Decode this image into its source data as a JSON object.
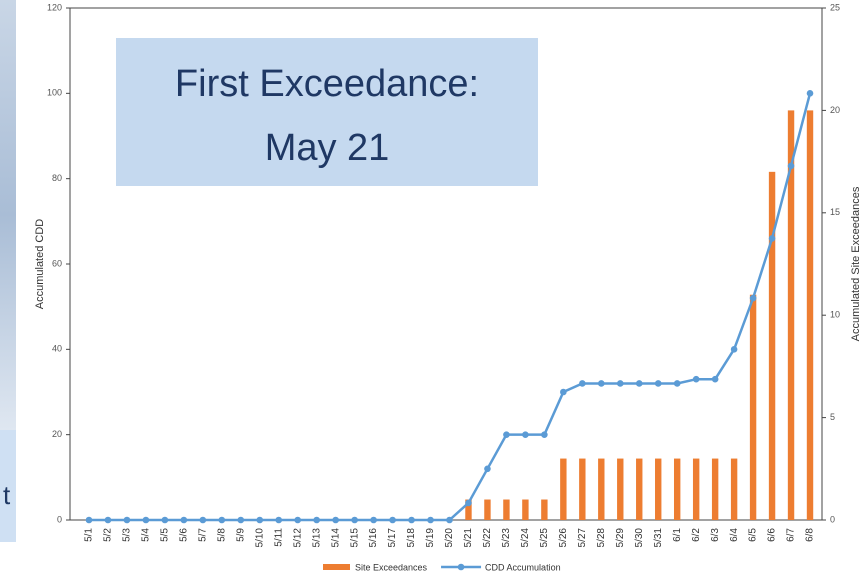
{
  "chart_data": {
    "type": "bar_line",
    "annotation": [
      "First Exceedance:",
      "May 21"
    ],
    "background_text": "t",
    "y_label": "Accumulated CDD",
    "y2_label": "Accumulated Site Exceedances",
    "categories": [
      "5/1",
      "5/2",
      "5/3",
      "5/4",
      "5/5",
      "5/6",
      "5/7",
      "5/8",
      "5/9",
      "5/10",
      "5/11",
      "5/12",
      "5/13",
      "5/14",
      "5/15",
      "5/16",
      "5/17",
      "5/18",
      "5/19",
      "5/20",
      "5/21",
      "5/22",
      "5/23",
      "5/24",
      "5/25",
      "5/26",
      "5/27",
      "5/28",
      "5/29",
      "5/30",
      "5/31",
      "6/1",
      "6/2",
      "6/3",
      "6/4",
      "6/5",
      "6/6",
      "6/7",
      "6/8"
    ],
    "series": [
      {
        "name": "Site Exceedances",
        "type": "bar",
        "axis": "y2",
        "color": "#ed7d31",
        "values": [
          0,
          0,
          0,
          0,
          0,
          0,
          0,
          0,
          0,
          0,
          0,
          0,
          0,
          0,
          0,
          0,
          0,
          0,
          0,
          0,
          1,
          1,
          1,
          1,
          1,
          3,
          3,
          3,
          3,
          3,
          3,
          3,
          3,
          3,
          3,
          11,
          17,
          20,
          20
        ]
      },
      {
        "name": "CDD Accumulation",
        "type": "line",
        "axis": "y",
        "color": "#5b9bd5",
        "values": [
          0,
          0,
          0,
          0,
          0,
          0,
          0,
          0,
          0,
          0,
          0,
          0,
          0,
          0,
          0,
          0,
          0,
          0,
          0,
          0,
          4,
          12,
          20,
          20,
          20,
          30,
          32,
          32,
          32,
          32,
          32,
          32,
          33,
          33,
          40,
          52,
          66,
          83,
          100
        ]
      }
    ],
    "ylim": [
      0,
      120
    ],
    "yticks": [
      0,
      20,
      40,
      60,
      80,
      100,
      120
    ],
    "y2lim": [
      0,
      25
    ],
    "y2ticks": [
      0,
      5,
      10,
      15,
      20,
      25
    ],
    "legend": "bottom"
  }
}
